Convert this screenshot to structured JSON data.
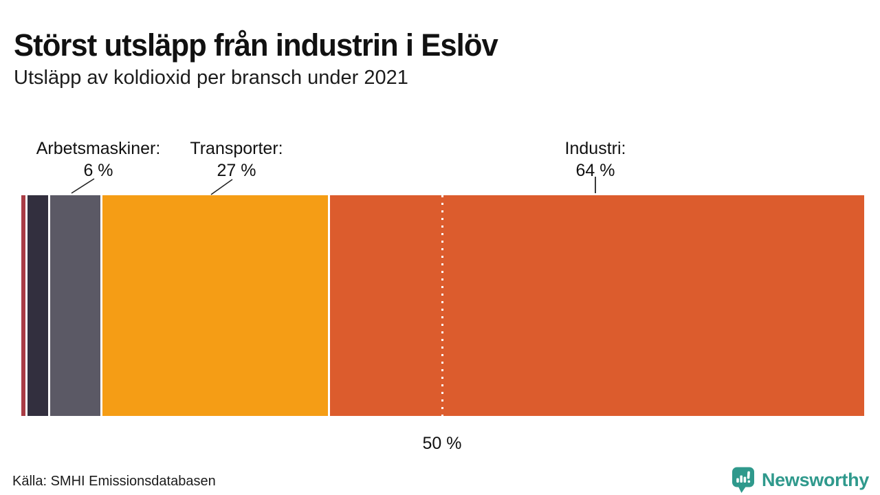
{
  "header": {
    "title": "Störst utsläpp från industrin i Eslöv",
    "subtitle": "Utsläpp av koldioxid per bransch under 2021"
  },
  "chart_data": {
    "type": "bar",
    "variant": "horizontal-stacked-single-bar",
    "unit": "%",
    "xlim": [
      0,
      100
    ],
    "series": [
      {
        "name": "",
        "value": 0.5,
        "color": "#a93c44",
        "labeled": false
      },
      {
        "name": "",
        "value": 2.5,
        "color": "#322f3e",
        "labeled": false
      },
      {
        "name": "Arbetsmaskiner",
        "value": 6,
        "color": "#5b5965",
        "labeled": true
      },
      {
        "name": "Transporter",
        "value": 27,
        "color": "#f59d15",
        "labeled": true
      },
      {
        "name": "Industri",
        "value": 64,
        "color": "#dc5c2d",
        "labeled": true
      }
    ],
    "annotations": [
      {
        "label": "Arbetsmaskiner:",
        "value_label": "6 %"
      },
      {
        "label": "Transporter:",
        "value_label": "27 %"
      },
      {
        "label": "Industri:",
        "value_label": "64 %"
      }
    ],
    "axis_marker": {
      "value": 50,
      "label": "50 %",
      "style": "white-dotted-line"
    }
  },
  "footer": {
    "source": "Källa: SMHI Emissionsdatabasen",
    "brand": "Newsworthy",
    "brand_color": "#2f998c"
  }
}
